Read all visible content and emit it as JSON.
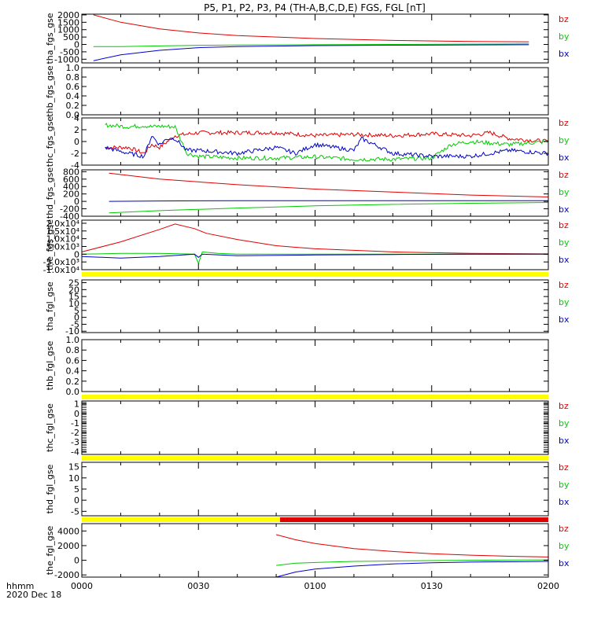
{
  "title": "P5, P1, P2, P3, P4 (TH-A,B,C,D,E) FGS, FGL [nT]",
  "x_axis": {
    "row1": "hhmm",
    "row2": "2020 Dec 18",
    "ticks": [
      "0000",
      "0030",
      "0100",
      "0130",
      "0200"
    ],
    "range_minutes": [
      0,
      120
    ]
  },
  "colors": {
    "bz": "#e00000",
    "by": "#00cc00",
    "bx": "#0000cc",
    "flag_yellow": "#ffff00",
    "flag_red": "#e00000"
  },
  "chart_data": [
    {
      "type": "line",
      "ylabel": "tha_fgs_gse",
      "yticks": [
        "2000",
        "1500",
        "1000",
        "500",
        "0",
        "-500",
        "-1000"
      ],
      "ylim": [
        -1250,
        2050
      ],
      "legend": [
        "bz",
        "by",
        "bx"
      ],
      "series": [
        {
          "name": "bz",
          "x": [
            3,
            10,
            20,
            30,
            40,
            60,
            80,
            100,
            115
          ],
          "y": [
            2000,
            1500,
            1050,
            780,
            600,
            400,
            270,
            200,
            170
          ]
        },
        {
          "name": "by",
          "x": [
            3,
            10,
            20,
            30,
            40,
            60,
            80,
            100,
            115
          ],
          "y": [
            -150,
            -150,
            -100,
            -60,
            -40,
            -20,
            0,
            20,
            40
          ]
        },
        {
          "name": "bx",
          "x": [
            3,
            10,
            20,
            30,
            40,
            60,
            80,
            100,
            115
          ],
          "y": [
            -1100,
            -700,
            -400,
            -220,
            -150,
            -80,
            -50,
            -30,
            -20
          ]
        }
      ]
    },
    {
      "type": "line",
      "ylabel": "thb_fgs_gse",
      "yticks": [
        "1.0",
        "0.8",
        "0.6",
        "0.4",
        "0.2",
        "0.0"
      ],
      "ylim": [
        0,
        1
      ],
      "legend": [],
      "series": []
    },
    {
      "type": "line",
      "ylabel": "thc_fgs_gse",
      "yticks": [
        "4",
        "2",
        "0",
        "-2",
        "-4"
      ],
      "ylim": [
        -4,
        4
      ],
      "legend": [
        "bz",
        "by",
        "bx"
      ],
      "noisy": true,
      "series": [
        {
          "name": "bz",
          "x": [
            6,
            12,
            16,
            18,
            20,
            24,
            30,
            40,
            50,
            60,
            70,
            80,
            90,
            100,
            105,
            110,
            120
          ],
          "y": [
            -1,
            -1,
            -2,
            -0.5,
            -1,
            1,
            1.5,
            1.5,
            1.5,
            1.0,
            1.2,
            1.0,
            1.3,
            1.0,
            1.5,
            0.5,
            0
          ]
        },
        {
          "name": "by",
          "x": [
            6,
            12,
            16,
            18,
            20,
            24,
            27,
            30,
            40,
            50,
            60,
            70,
            80,
            90,
            95,
            100,
            110,
            120
          ],
          "y": [
            2.8,
            2.5,
            2.7,
            2.5,
            2.6,
            2.5,
            -2,
            -2.5,
            -2.8,
            -2.8,
            -2.6,
            -3,
            -3,
            -2.8,
            -0.5,
            0,
            -0.5,
            0
          ]
        },
        {
          "name": "bx",
          "x": [
            6,
            12,
            16,
            18,
            20,
            22,
            24,
            27,
            30,
            40,
            50,
            55,
            60,
            70,
            72,
            80,
            90,
            100,
            110,
            120
          ],
          "y": [
            -1,
            -2,
            -2.5,
            1,
            -0.5,
            0.5,
            0.5,
            -1.5,
            -1.5,
            -2,
            -1,
            -2,
            -0.5,
            -1.5,
            0.5,
            -2,
            -2.5,
            -2.5,
            -1.5,
            -2
          ]
        }
      ]
    },
    {
      "type": "line",
      "ylabel": "thd_fgs_gse",
      "yticks": [
        "800",
        "600",
        "400",
        "200",
        "0",
        "-200",
        "-400"
      ],
      "ylim": [
        -400,
        850
      ],
      "legend": [
        "bz",
        "by",
        "bx"
      ],
      "series": [
        {
          "name": "bz",
          "x": [
            7,
            20,
            40,
            60,
            80,
            100,
            120
          ],
          "y": [
            760,
            600,
            450,
            330,
            250,
            170,
            120
          ]
        },
        {
          "name": "by",
          "x": [
            7,
            20,
            40,
            60,
            80,
            100,
            120
          ],
          "y": [
            -310,
            -250,
            -180,
            -120,
            -80,
            -50,
            -30
          ]
        },
        {
          "name": "bx",
          "x": [
            7,
            20,
            40,
            60,
            80,
            100,
            120
          ],
          "y": [
            0,
            10,
            20,
            20,
            20,
            20,
            20
          ]
        }
      ]
    },
    {
      "type": "line",
      "ylabel": "the_fgs_gse",
      "yticks": [
        "2.0x10⁴",
        "1.5x10⁴",
        "1.0x10⁴",
        "5.0x10³",
        "0",
        "-5.0x10³",
        "-1.0x10⁴"
      ],
      "ylim": [
        -10000,
        22000
      ],
      "legend": [
        "bz",
        "by",
        "bx"
      ],
      "series": [
        {
          "name": "bz",
          "x": [
            0,
            10,
            20,
            24,
            29,
            32,
            40,
            50,
            60,
            80,
            100,
            120
          ],
          "y": [
            1500,
            8000,
            16000,
            19500,
            16500,
            13500,
            9500,
            5500,
            3500,
            1500,
            500,
            200
          ]
        },
        {
          "name": "by",
          "x": [
            0,
            10,
            20,
            29,
            30,
            31,
            35,
            40,
            60,
            80,
            100,
            120
          ],
          "y": [
            0,
            500,
            500,
            0,
            -6000,
            1500,
            500,
            0,
            0,
            0,
            0,
            0
          ]
        },
        {
          "name": "bx",
          "x": [
            0,
            10,
            20,
            29,
            30,
            31,
            40,
            60,
            80,
            100,
            120
          ],
          "y": [
            -1500,
            -2500,
            -1500,
            0,
            -2000,
            0,
            -1000,
            -500,
            -200,
            0,
            0
          ]
        }
      ]
    },
    {
      "type": "line",
      "ylabel": "tha_fgl_gse",
      "yticks": [
        "25",
        "20",
        "15",
        "10",
        "5",
        "0",
        "-5",
        "-10"
      ],
      "ylim": [
        -11,
        27
      ],
      "legend": [
        "bz",
        "by",
        "bx"
      ],
      "series": []
    },
    {
      "type": "line",
      "ylabel": "thb_fgl_gse",
      "yticks": [
        "1.0",
        "0.8",
        "0.6",
        "0.4",
        "0.2",
        "0.0"
      ],
      "ylim": [
        0,
        1
      ],
      "legend": [],
      "series": []
    },
    {
      "type": "line",
      "ylabel": "thc_fgl_gse",
      "yticks": [
        "1",
        "0",
        "-1",
        "-2",
        "-3",
        "-4"
      ],
      "ylim": [
        -4.3,
        1.3
      ],
      "legend": [
        "bz",
        "by",
        "bx"
      ],
      "series": []
    },
    {
      "type": "line",
      "ylabel": "thd_fgl_gse",
      "yticks": [
        "15",
        "10",
        "5",
        "0",
        "-5"
      ],
      "ylim": [
        -7,
        17
      ],
      "legend": [
        "bz",
        "by",
        "bx"
      ],
      "series": []
    },
    {
      "type": "line",
      "ylabel": "the_fgl_gse",
      "yticks": [
        "4000",
        "2000",
        "0",
        "-2000"
      ],
      "ylim": [
        -2300,
        5000
      ],
      "legend": [
        "bz",
        "by",
        "bx"
      ],
      "series": [
        {
          "name": "bz",
          "x": [
            50,
            55,
            60,
            70,
            80,
            90,
            100,
            110,
            120
          ],
          "y": [
            3500,
            2800,
            2300,
            1600,
            1200,
            900,
            700,
            550,
            450
          ]
        },
        {
          "name": "by",
          "x": [
            50,
            55,
            60,
            70,
            80,
            90,
            100,
            120
          ],
          "y": [
            -700,
            -400,
            -300,
            -150,
            -100,
            -50,
            0,
            50
          ]
        },
        {
          "name": "bx",
          "x": [
            50,
            55,
            60,
            70,
            80,
            90,
            100,
            120
          ],
          "y": [
            -2300,
            -1600,
            -1200,
            -800,
            -500,
            -350,
            -250,
            -150
          ]
        }
      ]
    }
  ],
  "flags": [
    {
      "after_panel": 4,
      "segments": [
        {
          "from": 0,
          "to": 120,
          "color": "yellow"
        }
      ]
    },
    {
      "after_panel": 6,
      "segments": [
        {
          "from": 0,
          "to": 120,
          "color": "yellow"
        }
      ]
    },
    {
      "after_panel": 7,
      "segments": [
        {
          "from": 0,
          "to": 120,
          "color": "yellow"
        }
      ]
    },
    {
      "after_panel": 8,
      "segments": [
        {
          "from": 0,
          "to": 51,
          "color": "yellow"
        },
        {
          "from": 51,
          "to": 120,
          "color": "red"
        }
      ]
    }
  ]
}
